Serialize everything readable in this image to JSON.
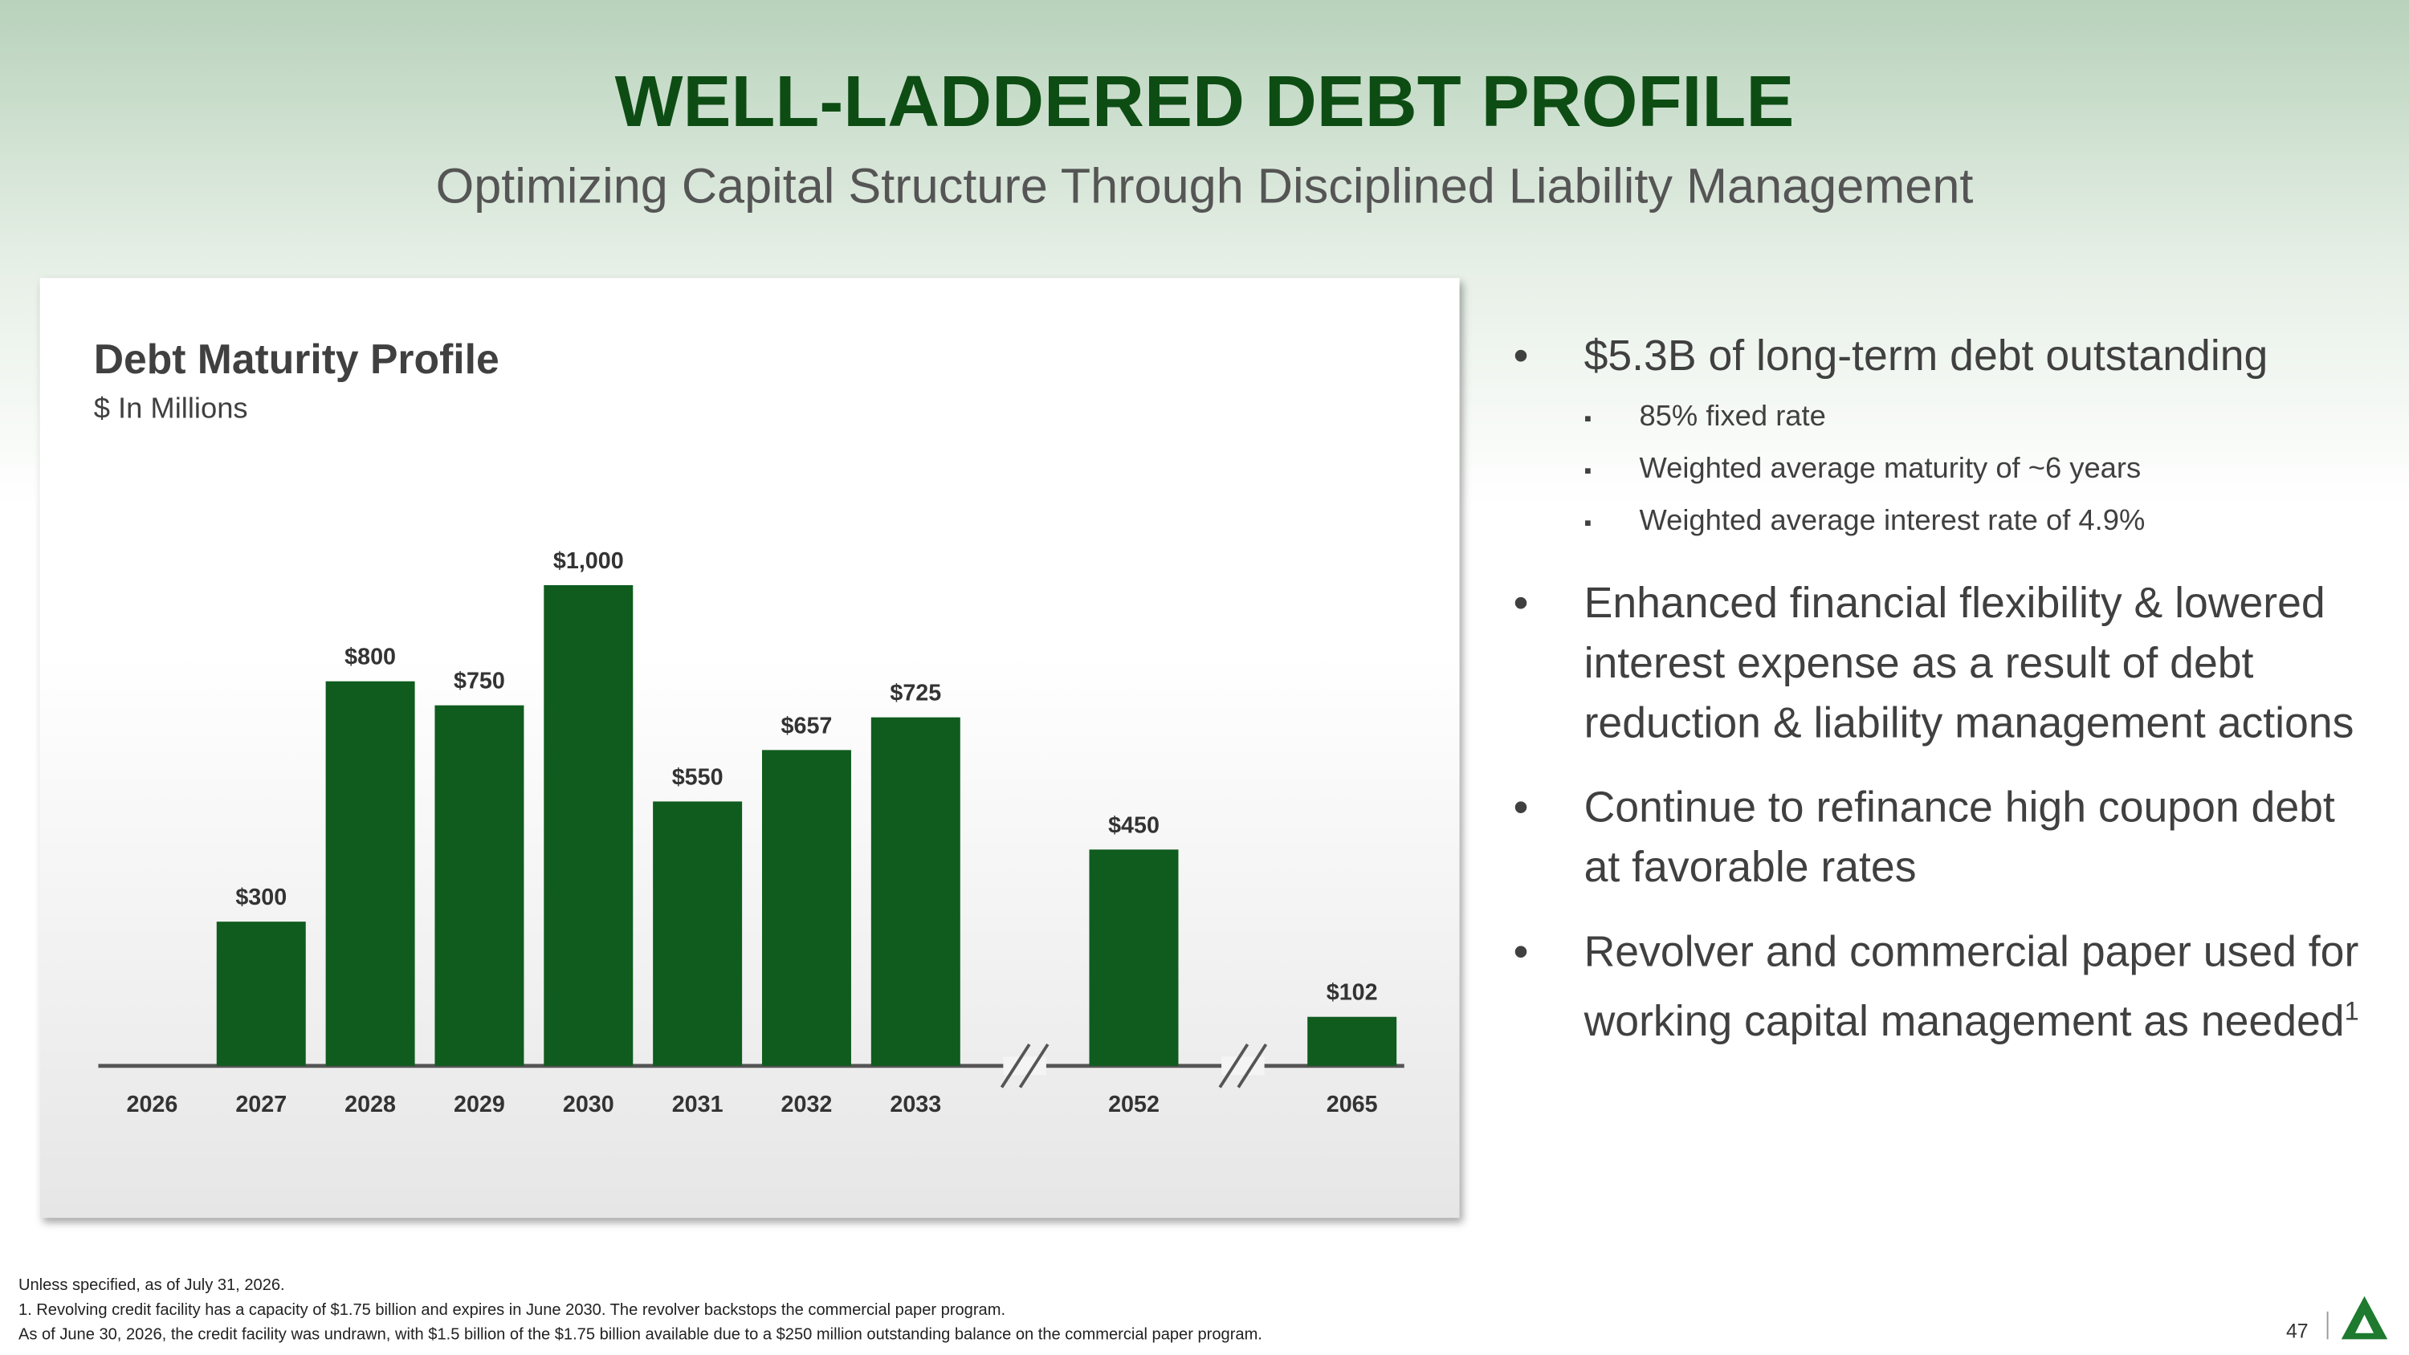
{
  "header": {
    "title": "WELL-LADDERED DEBT PROFILE",
    "subtitle": "Optimizing Capital Structure Through Disciplined Liability Management"
  },
  "chart_data": {
    "type": "bar",
    "title": "Debt Maturity Profile",
    "subtitle": "$ In Millions",
    "categories": [
      "2026",
      "2027",
      "2028",
      "2029",
      "2030",
      "2031",
      "2032",
      "2033",
      null,
      "2052",
      null,
      "2065"
    ],
    "values": [
      null,
      300,
      800,
      750,
      1000,
      550,
      657,
      725,
      null,
      450,
      null,
      102
    ],
    "value_labels": [
      null,
      "$300",
      "$800",
      "$750",
      "$1,000",
      "$550",
      "$657",
      "$725",
      null,
      "$450",
      null,
      "$102"
    ],
    "color": "#0f5c1e"
  },
  "bullets": [
    {
      "text": "$5.3B of long-term debt outstanding",
      "sub": [
        "85% fixed rate",
        "Weighted average maturity of ~6 years",
        "Weighted average interest rate of 4.9%"
      ]
    },
    {
      "text": "Enhanced financial flexibility & lowered interest expense as a result of debt reduction & liability management actions"
    },
    {
      "text": "Continue to refinance high coupon debt at favorable rates"
    },
    {
      "text": "Revolver and commercial paper used for working capital management as needed",
      "sup": "1"
    }
  ],
  "footnotes": [
    "Unless specified, as of July 31, 2026.",
    "1. Revolving credit facility has a capacity of $1.75 billion and expires in June 2030. The revolver backstops the commercial paper program.",
    "As of June 30, 2026, the credit facility was undrawn, with $1.5 billion of the $1.75 billion available due to a $250 million outstanding balance on the commercial paper program."
  ],
  "page_number": "47"
}
